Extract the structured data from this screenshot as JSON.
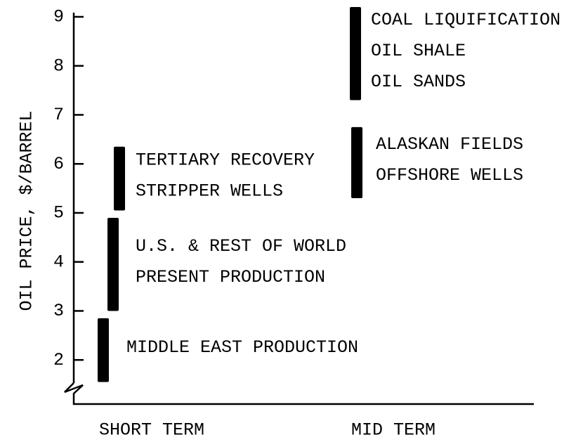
{
  "chart_data": {
    "type": "range_bar",
    "ylabel": "OIL PRICE, $/BARREL",
    "ylim": [
      1.1,
      9.2
    ],
    "yticks": [
      2,
      3,
      4,
      5,
      6,
      7,
      8,
      9
    ],
    "color": "#000000",
    "groups": [
      {
        "name": "SHORT TERM",
        "bars": [
          {
            "labels": [
              "MIDDLE EAST PRODUCTION"
            ],
            "low": 1.55,
            "high": 2.85
          },
          {
            "labels": [
              "U.S. & REST OF WORLD",
              "PRESENT PRODUCTION"
            ],
            "low": 3.0,
            "high": 4.9
          },
          {
            "labels": [
              "TERTIARY RECOVERY",
              "STRIPPER WELLS"
            ],
            "low": 5.05,
            "high": 6.35
          }
        ]
      },
      {
        "name": "MID TERM",
        "bars": [
          {
            "labels": [
              "ALASKAN FIELDS",
              "OFFSHORE WELLS"
            ],
            "low": 5.3,
            "high": 6.75
          },
          {
            "labels": [
              "COAL LIQUIFICATION",
              "OIL SHALE",
              "OIL SANDS"
            ],
            "low": 7.3,
            "high": 9.2
          }
        ]
      }
    ]
  }
}
